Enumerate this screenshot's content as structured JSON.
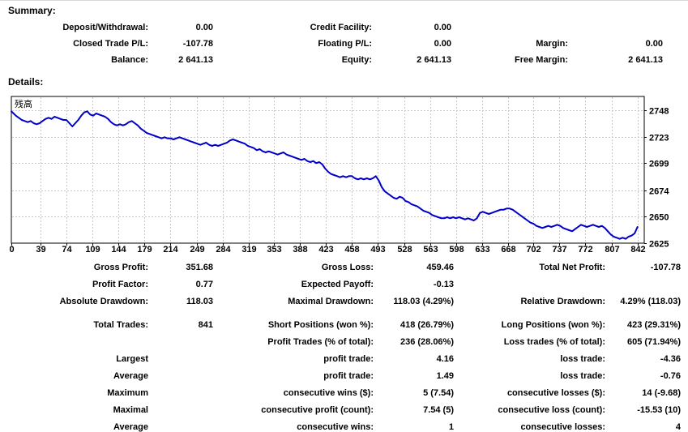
{
  "summary": {
    "heading": "Summary:",
    "rows": [
      [
        "Deposit/Withdrawal:",
        "0.00",
        "Credit Facility:",
        "0.00",
        "",
        ""
      ],
      [
        "Closed Trade P/L:",
        "-107.78",
        "Floating P/L:",
        "0.00",
        "Margin:",
        "0.00"
      ],
      [
        "Balance:",
        "2 641.13",
        "Equity:",
        "2 641.13",
        "Free Margin:",
        "2 641.13"
      ]
    ]
  },
  "details": {
    "heading": "Details:",
    "gap_after_row_index": 2,
    "rows": [
      [
        "Gross Profit:",
        "351.68",
        "Gross Loss:",
        "459.46",
        "Total Net Profit:",
        "-107.78"
      ],
      [
        "Profit Factor:",
        "0.77",
        "Expected Payoff:",
        "-0.13",
        "",
        ""
      ],
      [
        "Absolute Drawdown:",
        "118.03",
        "Maximal Drawdown:",
        "118.03 (4.29%)",
        "Relative Drawdown:",
        "4.29% (118.03)"
      ],
      [
        "Total Trades:",
        "841",
        "Short Positions (won %):",
        "418 (26.79%)",
        "Long Positions (won %):",
        "423 (29.31%)"
      ],
      [
        "",
        "",
        "Profit Trades (% of total):",
        "236 (28.06%)",
        "Loss trades (% of total):",
        "605 (71.94%)"
      ],
      [
        "Largest",
        "",
        "profit trade:",
        "4.16",
        "loss trade:",
        "-4.36"
      ],
      [
        "Average",
        "",
        "profit trade:",
        "1.49",
        "loss trade:",
        "-0.76"
      ],
      [
        "Maximum",
        "",
        "consecutive wins ($):",
        "5 (7.54)",
        "consecutive losses ($):",
        "14 (-9.68)"
      ],
      [
        "Maximal",
        "",
        "consecutive profit (count):",
        "7.54 (5)",
        "consecutive loss (count):",
        "-15.53 (10)"
      ],
      [
        "Average",
        "",
        "consecutive wins:",
        "1",
        "consecutive losses:",
        "4"
      ]
    ]
  },
  "chart_data": {
    "type": "line",
    "title": "残高",
    "legend_position": "top-left-inside",
    "grid": true,
    "xlim": [
      0,
      851
    ],
    "ylim": [
      2625,
      2760.75
    ],
    "x_ticks": [
      0,
      39,
      74,
      109,
      144,
      179,
      214,
      249,
      284,
      319,
      353,
      388,
      423,
      458,
      493,
      528,
      563,
      598,
      633,
      668,
      702,
      737,
      772,
      807,
      842
    ],
    "y_ticks": [
      2748,
      2723,
      2699,
      2674,
      2650,
      2625
    ],
    "series": [
      {
        "name": "残高",
        "color": "#0000C8",
        "points": [
          [
            0,
            2747
          ],
          [
            3,
            2745
          ],
          [
            6,
            2743
          ],
          [
            10,
            2741
          ],
          [
            14,
            2739
          ],
          [
            18,
            2738
          ],
          [
            22,
            2737
          ],
          [
            26,
            2738
          ],
          [
            30,
            2736
          ],
          [
            34,
            2735
          ],
          [
            38,
            2736
          ],
          [
            42,
            2738
          ],
          [
            46,
            2740
          ],
          [
            50,
            2741
          ],
          [
            54,
            2740
          ],
          [
            58,
            2742
          ],
          [
            62,
            2741
          ],
          [
            66,
            2740
          ],
          [
            70,
            2739
          ],
          [
            74,
            2739
          ],
          [
            78,
            2736
          ],
          [
            82,
            2733
          ],
          [
            86,
            2736
          ],
          [
            90,
            2739
          ],
          [
            94,
            2743
          ],
          [
            98,
            2746
          ],
          [
            102,
            2747
          ],
          [
            106,
            2744
          ],
          [
            110,
            2743
          ],
          [
            114,
            2745
          ],
          [
            118,
            2744
          ],
          [
            122,
            2743
          ],
          [
            126,
            2742
          ],
          [
            130,
            2740
          ],
          [
            134,
            2737
          ],
          [
            138,
            2735
          ],
          [
            142,
            2734
          ],
          [
            146,
            2735
          ],
          [
            150,
            2734
          ],
          [
            154,
            2735
          ],
          [
            158,
            2737
          ],
          [
            162,
            2738
          ],
          [
            166,
            2736
          ],
          [
            170,
            2734
          ],
          [
            174,
            2731
          ],
          [
            178,
            2729
          ],
          [
            182,
            2727
          ],
          [
            186,
            2726
          ],
          [
            190,
            2725
          ],
          [
            194,
            2724
          ],
          [
            198,
            2723
          ],
          [
            202,
            2722
          ],
          [
            206,
            2723
          ],
          [
            210,
            2722
          ],
          [
            214,
            2722
          ],
          [
            218,
            2721
          ],
          [
            222,
            2722
          ],
          [
            226,
            2723
          ],
          [
            230,
            2722
          ],
          [
            234,
            2721
          ],
          [
            238,
            2720
          ],
          [
            242,
            2719
          ],
          [
            246,
            2718
          ],
          [
            250,
            2717
          ],
          [
            254,
            2716
          ],
          [
            258,
            2717
          ],
          [
            262,
            2718
          ],
          [
            266,
            2716
          ],
          [
            270,
            2715
          ],
          [
            274,
            2716
          ],
          [
            278,
            2715
          ],
          [
            282,
            2716
          ],
          [
            286,
            2717
          ],
          [
            290,
            2718
          ],
          [
            294,
            2720
          ],
          [
            298,
            2721
          ],
          [
            302,
            2720
          ],
          [
            306,
            2719
          ],
          [
            310,
            2718
          ],
          [
            314,
            2717
          ],
          [
            318,
            2715
          ],
          [
            322,
            2714
          ],
          [
            326,
            2713
          ],
          [
            330,
            2711
          ],
          [
            334,
            2712
          ],
          [
            338,
            2710
          ],
          [
            342,
            2709
          ],
          [
            346,
            2710
          ],
          [
            350,
            2709
          ],
          [
            354,
            2708
          ],
          [
            358,
            2707
          ],
          [
            362,
            2708
          ],
          [
            366,
            2709
          ],
          [
            370,
            2707
          ],
          [
            374,
            2706
          ],
          [
            378,
            2705
          ],
          [
            382,
            2704
          ],
          [
            386,
            2703
          ],
          [
            390,
            2702
          ],
          [
            394,
            2703
          ],
          [
            398,
            2701
          ],
          [
            402,
            2700
          ],
          [
            406,
            2701
          ],
          [
            410,
            2699
          ],
          [
            414,
            2700
          ],
          [
            418,
            2698
          ],
          [
            422,
            2694
          ],
          [
            426,
            2691
          ],
          [
            430,
            2689
          ],
          [
            434,
            2688
          ],
          [
            438,
            2687
          ],
          [
            442,
            2686
          ],
          [
            446,
            2687
          ],
          [
            450,
            2686
          ],
          [
            454,
            2687
          ],
          [
            458,
            2687
          ],
          [
            462,
            2685
          ],
          [
            466,
            2684
          ],
          [
            470,
            2685
          ],
          [
            474,
            2684
          ],
          [
            478,
            2685
          ],
          [
            482,
            2684
          ],
          [
            486,
            2685
          ],
          [
            490,
            2687
          ],
          [
            494,
            2683
          ],
          [
            498,
            2677
          ],
          [
            502,
            2673
          ],
          [
            506,
            2671
          ],
          [
            510,
            2669
          ],
          [
            514,
            2667
          ],
          [
            518,
            2666
          ],
          [
            522,
            2668
          ],
          [
            526,
            2667
          ],
          [
            530,
            2664
          ],
          [
            534,
            2663
          ],
          [
            538,
            2661
          ],
          [
            542,
            2660
          ],
          [
            546,
            2659
          ],
          [
            550,
            2657
          ],
          [
            554,
            2655
          ],
          [
            558,
            2654
          ],
          [
            562,
            2653
          ],
          [
            566,
            2651
          ],
          [
            570,
            2650
          ],
          [
            574,
            2649
          ],
          [
            578,
            2648
          ],
          [
            582,
            2648
          ],
          [
            586,
            2649
          ],
          [
            590,
            2648
          ],
          [
            594,
            2649
          ],
          [
            598,
            2648
          ],
          [
            602,
            2649
          ],
          [
            606,
            2648
          ],
          [
            610,
            2647
          ],
          [
            614,
            2648
          ],
          [
            618,
            2647
          ],
          [
            622,
            2646
          ],
          [
            626,
            2648
          ],
          [
            630,
            2653
          ],
          [
            634,
            2654
          ],
          [
            638,
            2653
          ],
          [
            642,
            2652
          ],
          [
            646,
            2653
          ],
          [
            650,
            2654
          ],
          [
            654,
            2655
          ],
          [
            658,
            2656
          ],
          [
            662,
            2656
          ],
          [
            666,
            2657
          ],
          [
            670,
            2657
          ],
          [
            674,
            2656
          ],
          [
            678,
            2654
          ],
          [
            682,
            2652
          ],
          [
            686,
            2650
          ],
          [
            690,
            2648
          ],
          [
            694,
            2646
          ],
          [
            698,
            2644
          ],
          [
            702,
            2643
          ],
          [
            706,
            2641
          ],
          [
            710,
            2640
          ],
          [
            714,
            2639
          ],
          [
            718,
            2640
          ],
          [
            722,
            2641
          ],
          [
            726,
            2640
          ],
          [
            730,
            2641
          ],
          [
            734,
            2642
          ],
          [
            738,
            2641
          ],
          [
            742,
            2639
          ],
          [
            746,
            2638
          ],
          [
            750,
            2637
          ],
          [
            754,
            2636
          ],
          [
            758,
            2638
          ],
          [
            762,
            2640
          ],
          [
            766,
            2642
          ],
          [
            770,
            2641
          ],
          [
            774,
            2640
          ],
          [
            778,
            2641
          ],
          [
            782,
            2642
          ],
          [
            786,
            2641
          ],
          [
            790,
            2640
          ],
          [
            794,
            2641
          ],
          [
            798,
            2639
          ],
          [
            802,
            2636
          ],
          [
            806,
            2633
          ],
          [
            810,
            2631
          ],
          [
            814,
            2630
          ],
          [
            818,
            2629
          ],
          [
            822,
            2630
          ],
          [
            826,
            2629
          ],
          [
            830,
            2631
          ],
          [
            834,
            2632
          ],
          [
            838,
            2634
          ],
          [
            842,
            2640
          ]
        ]
      }
    ]
  },
  "colors": {
    "line": "#0000C8",
    "grid": "#C8C8C8",
    "plot_border": "#000000",
    "text": "#000000",
    "background": "#FFFFFF"
  }
}
